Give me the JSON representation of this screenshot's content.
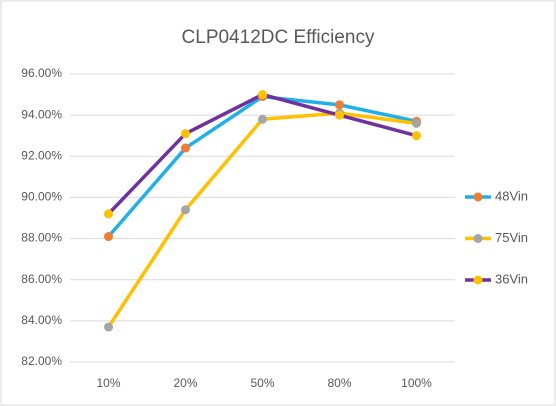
{
  "chart_data": {
    "type": "line",
    "title": "CLP0412DC Efficiency",
    "categories": [
      "10%",
      "20%",
      "50%",
      "80%",
      "100%"
    ],
    "series": [
      {
        "name": "48Vin",
        "color": "#1fb0e8",
        "marker_color": "#ed7d31",
        "values": [
          88.1,
          92.4,
          94.9,
          94.5,
          93.7
        ]
      },
      {
        "name": "75Vin",
        "color": "#ffc000",
        "marker_color": "#a5a5a5",
        "values": [
          83.7,
          89.4,
          93.8,
          94.1,
          93.6
        ]
      },
      {
        "name": "36Vin",
        "color": "#7030a0",
        "marker_color": "#ffc000",
        "values": [
          89.2,
          93.1,
          95.0,
          94.0,
          93.0
        ]
      }
    ],
    "ylim": [
      82,
      96
    ],
    "yticks": [
      {
        "value": 82,
        "label": "82.00%"
      },
      {
        "value": 84,
        "label": "84.00%"
      },
      {
        "value": 86,
        "label": "86.00%"
      },
      {
        "value": 88,
        "label": "88.00%"
      },
      {
        "value": 90,
        "label": "90.00%"
      },
      {
        "value": 92,
        "label": "92.00%"
      },
      {
        "value": 94,
        "label": "94.00%"
      },
      {
        "value": 96,
        "label": "96.00%"
      }
    ],
    "grid": true,
    "legend": "right"
  }
}
